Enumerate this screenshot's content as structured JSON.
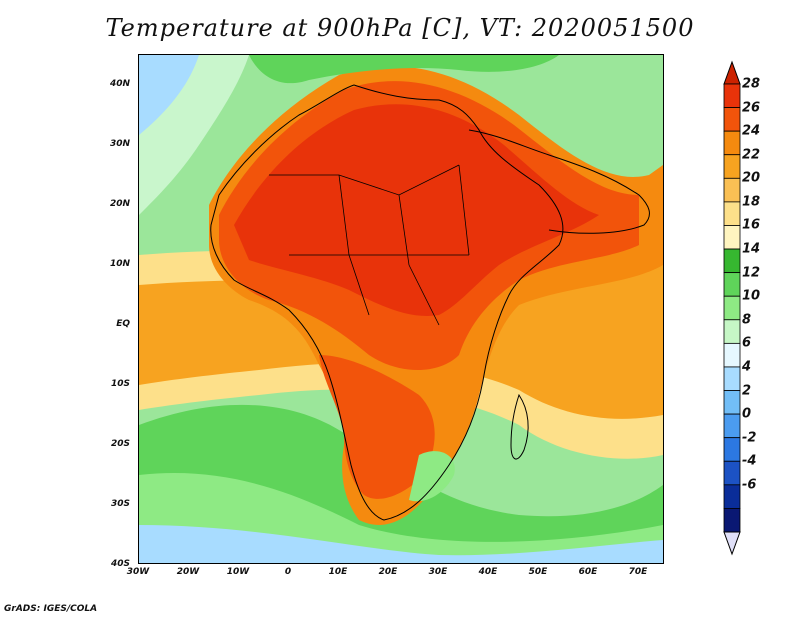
{
  "title": "Temperature at 900hPa [C], VT: 2020051500",
  "credit": "GrADS: IGES/COLA",
  "map": {
    "lat_labels": [
      "40N",
      "30N",
      "20N",
      "10N",
      "EQ",
      "10S",
      "20S",
      "30S",
      "40S"
    ],
    "lon_labels": [
      "30W",
      "20W",
      "10W",
      "0",
      "10E",
      "20E",
      "30E",
      "40E",
      "50E",
      "60E",
      "70E"
    ],
    "lat_range": [
      -40,
      45
    ],
    "lon_range": [
      -30,
      75
    ]
  },
  "colorbar": {
    "labels": [
      "28",
      "26",
      "24",
      "22",
      "20",
      "18",
      "16",
      "14",
      "12",
      "10",
      "8",
      "6",
      "4",
      "2",
      "0",
      "-2",
      "-4",
      "-6"
    ],
    "colors_top_to_bottom": [
      "#e8330a",
      "#f2540b",
      "#f58a0f",
      "#f7a320",
      "#fac054",
      "#fde08a",
      "#fff5c0",
      "#36b730",
      "#5fd45a",
      "#8eea84",
      "#c6f7c6",
      "#e6f8ff",
      "#a8dcff",
      "#72bef7",
      "#4b9cf0",
      "#2c78e2",
      "#1c52c4",
      "#0a2d99",
      "#0a1873"
    ],
    "top_arrow_color": "#cc2200",
    "bottom_arrow_color": "#e0e0f8"
  }
}
